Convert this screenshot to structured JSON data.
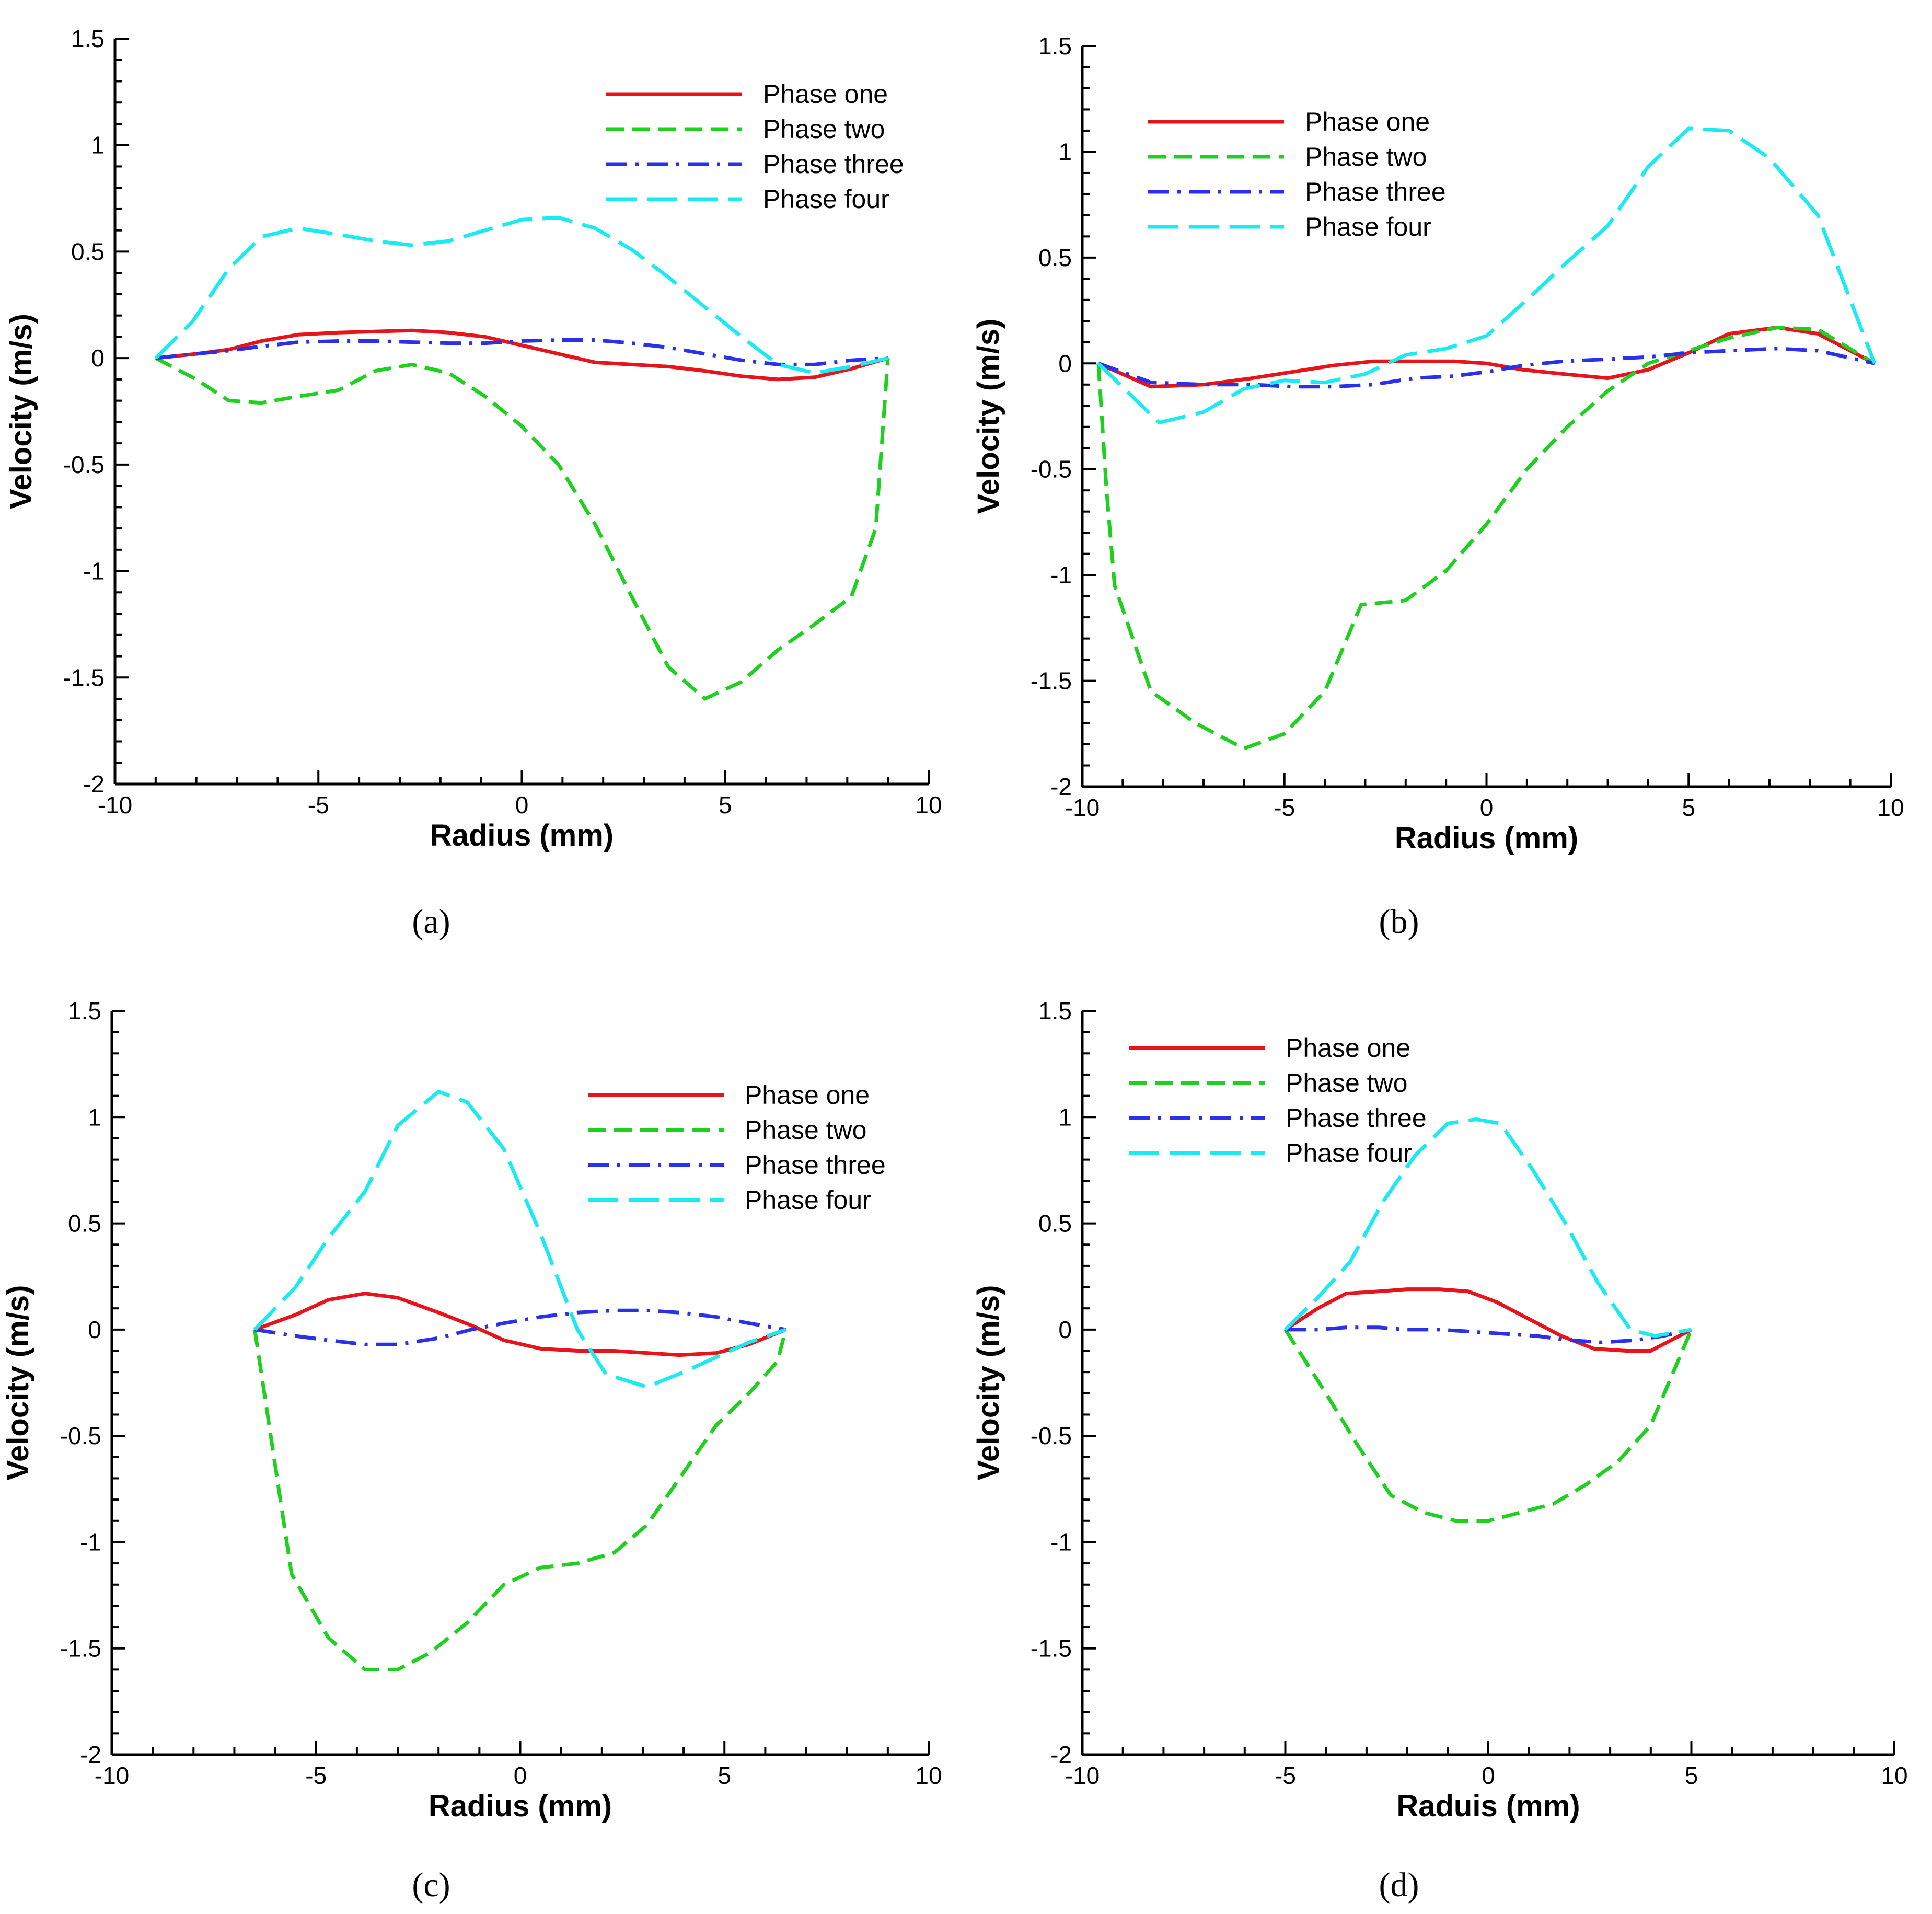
{
  "figure": {
    "chart_data": [
      {
        "type": "line",
        "panel_label": "(a)",
        "title": "",
        "xlabel": "Radius (mm)",
        "ylabel": "Velocity (m/s)",
        "xlim": [
          -10,
          10
        ],
        "ylim": [
          -2,
          1.5
        ],
        "xticks": [
          -10,
          -5,
          0,
          5,
          10
        ],
        "yticks": [
          1.5,
          1,
          0.5,
          0,
          -0.5,
          -1,
          -1.5,
          -2
        ],
        "legend_position": "top-right",
        "series": [
          {
            "name": "Phase one",
            "color": "#e8141b",
            "style": "solid",
            "x": [
              -9,
              -8,
              -7.2,
              -6.4,
              -5.5,
              -4.5,
              -3.6,
              -2.7,
              -1.8,
              -0.9,
              0,
              0.9,
              1.8,
              2.7,
              3.6,
              4.5,
              5.4,
              6.3,
              7.2,
              8.1,
              9
            ],
            "y": [
              0,
              0.02,
              0.04,
              0.08,
              0.11,
              0.12,
              0.125,
              0.13,
              0.12,
              0.1,
              0.06,
              0.02,
              -0.02,
              -0.03,
              -0.04,
              -0.06,
              -0.085,
              -0.1,
              -0.09,
              -0.05,
              0
            ]
          },
          {
            "name": "Phase two",
            "color": "#1fd11f",
            "style": "dashed",
            "x": [
              -9,
              -8,
              -7.2,
              -6.4,
              -5.5,
              -4.5,
              -3.6,
              -2.7,
              -1.8,
              -0.9,
              0,
              0.9,
              1.8,
              2.7,
              3.6,
              4.5,
              5.4,
              6.3,
              7.2,
              8.1,
              8.7,
              9
            ],
            "y": [
              0,
              -0.1,
              -0.2,
              -0.21,
              -0.18,
              -0.15,
              -0.06,
              -0.03,
              -0.07,
              -0.18,
              -0.32,
              -0.5,
              -0.78,
              -1.12,
              -1.45,
              -1.6,
              -1.52,
              -1.37,
              -1.25,
              -1.12,
              -0.8,
              0
            ]
          },
          {
            "name": "Phase three",
            "color": "#2a31e8",
            "style": "dashdot",
            "x": [
              -9,
              -8,
              -7.2,
              -6.4,
              -5.5,
              -4.5,
              -3.6,
              -2.7,
              -1.8,
              -0.9,
              0,
              0.9,
              1.8,
              2.7,
              3.6,
              4.5,
              5.4,
              6.3,
              7.2,
              8.1,
              9
            ],
            "y": [
              0,
              0.02,
              0.035,
              0.055,
              0.075,
              0.08,
              0.08,
              0.075,
              0.07,
              0.07,
              0.08,
              0.085,
              0.085,
              0.07,
              0.05,
              0.02,
              -0.01,
              -0.03,
              -0.03,
              -0.01,
              0
            ]
          },
          {
            "name": "Phase four",
            "color": "#1aeaf2",
            "style": "longdash",
            "x": [
              -9,
              -8.1,
              -7.2,
              -6.4,
              -5.5,
              -4.5,
              -3.6,
              -2.7,
              -1.8,
              -0.9,
              0,
              0.9,
              1.8,
              2.7,
              3.6,
              4.5,
              5.4,
              6.3,
              7.2,
              8.1,
              9
            ],
            "y": [
              0,
              0.17,
              0.42,
              0.57,
              0.61,
              0.58,
              0.55,
              0.53,
              0.55,
              0.6,
              0.65,
              0.66,
              0.61,
              0.51,
              0.38,
              0.24,
              0.1,
              -0.03,
              -0.07,
              -0.04,
              0
            ]
          }
        ]
      },
      {
        "type": "line",
        "panel_label": "(b)",
        "title": "",
        "xlabel": "Radius (mm)",
        "ylabel": "Velocity (m/s)",
        "xlim": [
          -10,
          10
        ],
        "ylim": [
          -2,
          1.5
        ],
        "xticks": [
          -10,
          -5,
          0,
          5,
          10
        ],
        "yticks": [
          1.5,
          1,
          0.5,
          0,
          -0.5,
          -1,
          -1.5,
          -2
        ],
        "legend_position": "top-left",
        "series": [
          {
            "name": "Phase one",
            "color": "#e8141b",
            "style": "solid",
            "x": [
              -9.6,
              -8.3,
              -7,
              -5.8,
              -4.8,
              -3.8,
              -2.8,
              -1.8,
              -0.8,
              0,
              0.9,
              1.9,
              3,
              4,
              5,
              6,
              7.2,
              8.2,
              9.6
            ],
            "y": [
              0,
              -0.11,
              -0.1,
              -0.07,
              -0.04,
              -0.01,
              0.01,
              0.01,
              0.01,
              0,
              -0.03,
              -0.05,
              -0.07,
              -0.03,
              0.05,
              0.14,
              0.17,
              0.14,
              0
            ]
          },
          {
            "name": "Phase two",
            "color": "#1fd11f",
            "style": "dashed",
            "x": [
              -9.6,
              -9.4,
              -9.2,
              -8.3,
              -7.2,
              -6,
              -5,
              -4,
              -3.1,
              -2,
              -1,
              0,
              1,
              2,
              3,
              4,
              5,
              6,
              7.2,
              8.2,
              9.6
            ],
            "y": [
              0,
              -0.6,
              -1.05,
              -1.55,
              -1.7,
              -1.82,
              -1.75,
              -1.55,
              -1.14,
              -1.12,
              -0.98,
              -0.76,
              -0.5,
              -0.3,
              -0.13,
              0,
              0.06,
              0.12,
              0.17,
              0.16,
              0
            ]
          },
          {
            "name": "Phase three",
            "color": "#2a31e8",
            "style": "dashdot",
            "x": [
              -9.6,
              -8.3,
              -7,
              -5.8,
              -4.8,
              -3.8,
              -2.8,
              -1.8,
              -0.8,
              0,
              0.9,
              1.9,
              3,
              4,
              5,
              6,
              7.2,
              8.2,
              9.6
            ],
            "y": [
              0,
              -0.09,
              -0.1,
              -0.1,
              -0.11,
              -0.11,
              -0.1,
              -0.07,
              -0.06,
              -0.04,
              -0.01,
              0.01,
              0.02,
              0.03,
              0.05,
              0.06,
              0.07,
              0.06,
              0
            ]
          },
          {
            "name": "Phase four",
            "color": "#1aeaf2",
            "style": "longdash",
            "x": [
              -9.6,
              -8.1,
              -7,
              -6,
              -5,
              -4,
              -3,
              -2,
              -1,
              0,
              1,
              2,
              3,
              4,
              5,
              6,
              7,
              8.2,
              9.6
            ],
            "y": [
              0,
              -0.28,
              -0.23,
              -0.12,
              -0.08,
              -0.09,
              -0.05,
              0.04,
              0.07,
              0.13,
              0.3,
              0.48,
              0.65,
              0.93,
              1.11,
              1.1,
              0.97,
              0.7,
              0
            ]
          }
        ]
      },
      {
        "type": "line",
        "panel_label": "(c)",
        "title": "",
        "xlabel": "Radius (mm)",
        "ylabel": "Velocity (m/s)",
        "xlim": [
          -10,
          10
        ],
        "ylim": [
          -2,
          1.5
        ],
        "xticks": [
          -10,
          -5,
          0,
          5,
          10
        ],
        "yticks": [
          1.5,
          1,
          0.5,
          0,
          -0.5,
          -1,
          -1.5,
          -2
        ],
        "legend_position": "top-right",
        "series": [
          {
            "name": "Phase one",
            "color": "#e8141b",
            "style": "solid",
            "x": [
              -6.5,
              -5.5,
              -4.7,
              -3.8,
              -3,
              -2,
              -1.2,
              -0.4,
              0.5,
              1.4,
              2.3,
              3.1,
              3.9,
              4.8,
              5.6,
              6.5
            ],
            "y": [
              0,
              0.07,
              0.14,
              0.17,
              0.15,
              0.08,
              0.02,
              -0.05,
              -0.09,
              -0.1,
              -0.1,
              -0.11,
              -0.12,
              -0.11,
              -0.07,
              0
            ]
          },
          {
            "name": "Phase two",
            "color": "#1fd11f",
            "style": "dashed",
            "x": [
              -6.5,
              -5.6,
              -4.7,
              -3.8,
              -3,
              -2.2,
              -1.3,
              -0.4,
              0.5,
              1.4,
              2.3,
              3.1,
              3.9,
              4.8,
              5.6,
              6.3,
              6.5
            ],
            "y": [
              0,
              -1.15,
              -1.45,
              -1.6,
              -1.6,
              -1.52,
              -1.38,
              -1.2,
              -1.12,
              -1.1,
              -1.05,
              -0.92,
              -0.7,
              -0.45,
              -0.3,
              -0.15,
              0
            ]
          },
          {
            "name": "Phase three",
            "color": "#2a31e8",
            "style": "dashdot",
            "x": [
              -6.5,
              -5.5,
              -4.7,
              -3.8,
              -3,
              -2,
              -1.2,
              -0.4,
              0.5,
              1.4,
              2.3,
              3.1,
              3.9,
              4.8,
              5.6,
              6.5
            ],
            "y": [
              0,
              -0.03,
              -0.05,
              -0.07,
              -0.07,
              -0.04,
              0,
              0.03,
              0.06,
              0.08,
              0.09,
              0.09,
              0.08,
              0.06,
              0.03,
              0
            ]
          },
          {
            "name": "Phase four",
            "color": "#1aeaf2",
            "style": "longdash",
            "x": [
              -6.5,
              -5.5,
              -4.7,
              -3.8,
              -3,
              -2,
              -1.3,
              -0.4,
              0.5,
              1.4,
              2.1,
              3.1,
              4,
              4.8,
              5.6,
              6.5
            ],
            "y": [
              0,
              0.2,
              0.43,
              0.65,
              0.96,
              1.12,
              1.07,
              0.85,
              0.45,
              0,
              -0.21,
              -0.27,
              -0.2,
              -0.13,
              -0.06,
              0
            ]
          }
        ]
      },
      {
        "type": "line",
        "panel_label": "(d)",
        "title": "",
        "xlabel": "Raduis (mm)",
        "ylabel": "Velocity (m/s)",
        "xlim": [
          -10,
          10
        ],
        "ylim": [
          -2,
          1.5
        ],
        "xticks": [
          -10,
          -5,
          0,
          5,
          10
        ],
        "yticks": [
          1.5,
          1,
          0.5,
          0,
          -0.5,
          -1,
          -1.5,
          -2
        ],
        "legend_position": "top-left",
        "series": [
          {
            "name": "Phase one",
            "color": "#e8141b",
            "style": "solid",
            "x": [
              -5,
              -4.2,
              -3.5,
              -2.7,
              -2,
              -1.2,
              -0.5,
              0.2,
              1,
              1.8,
              2.6,
              3.4,
              4,
              5
            ],
            "y": [
              0,
              0.1,
              0.17,
              0.18,
              0.19,
              0.19,
              0.18,
              0.13,
              0.05,
              -0.03,
              -0.09,
              -0.1,
              -0.1,
              0
            ]
          },
          {
            "name": "Phase two",
            "color": "#1fd11f",
            "style": "dashed",
            "x": [
              -5,
              -4,
              -3.2,
              -2.4,
              -1.6,
              -0.8,
              0,
              0.8,
              1.6,
              2.4,
              3.2,
              4,
              5
            ],
            "y": [
              0,
              -0.3,
              -0.55,
              -0.78,
              -0.86,
              -0.9,
              -0.9,
              -0.86,
              -0.82,
              -0.73,
              -0.62,
              -0.45,
              0
            ]
          },
          {
            "name": "Phase three",
            "color": "#2a31e8",
            "style": "dashdot",
            "x": [
              -5,
              -4.2,
              -3.5,
              -2.7,
              -2,
              -1.2,
              -0.4,
              0.4,
              1.2,
              2,
              2.8,
              3.6,
              4.3,
              5
            ],
            "y": [
              0,
              0,
              0.01,
              0.01,
              0,
              0,
              -0.01,
              -0.02,
              -0.03,
              -0.05,
              -0.06,
              -0.05,
              -0.03,
              0
            ]
          },
          {
            "name": "Phase four",
            "color": "#1aeaf2",
            "style": "longdash",
            "x": [
              -5,
              -4.2,
              -3.4,
              -2.6,
              -1.8,
              -1,
              -0.3,
              0.3,
              1.1,
              1.9,
              2.7,
              3.5,
              4.1,
              5
            ],
            "y": [
              0,
              0.15,
              0.32,
              0.6,
              0.82,
              0.97,
              0.99,
              0.97,
              0.75,
              0.5,
              0.22,
              0,
              -0.03,
              0
            ]
          }
        ]
      }
    ]
  }
}
